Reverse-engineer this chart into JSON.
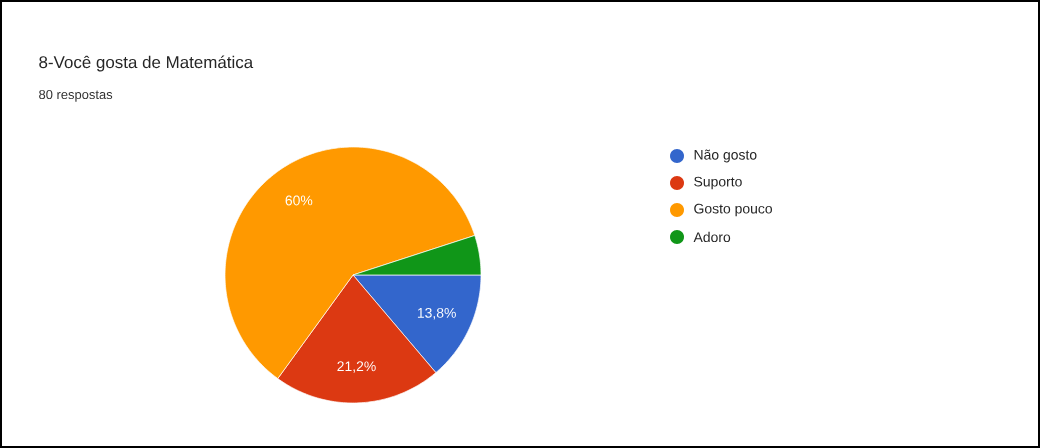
{
  "chart_data": {
    "type": "pie",
    "title": "8-Você gosta de Matemática",
    "subtitle": "80 respostas",
    "categories": [
      "Não gosto",
      "Suporto",
      "Gosto pouco",
      "Adoro"
    ],
    "values": [
      13.8,
      21.2,
      60,
      5
    ],
    "value_labels": [
      "13,8%",
      "21,2%",
      "60%",
      null
    ],
    "colors": [
      "#3366cc",
      "#dc3912",
      "#ff9900",
      "#109618"
    ],
    "legend": "right"
  }
}
